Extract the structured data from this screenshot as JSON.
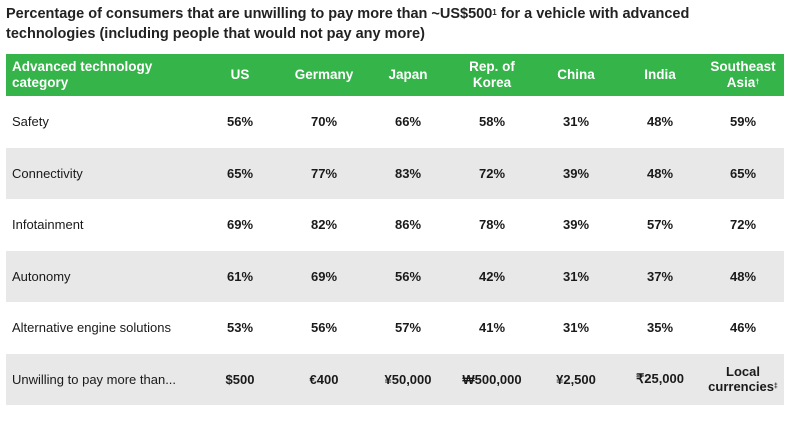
{
  "title": {
    "text_before": "Percentage of consumers that are unwilling to pay more than ~US$500",
    "marker": "1",
    "text_after": " for a vehicle with advanced technologies (including people that would not pay any more)"
  },
  "table": {
    "header": {
      "category": "Advanced technology category",
      "countries": [
        "US",
        "Germany",
        "Japan",
        "Rep. of Korea",
        "China",
        "India",
        "Southeast Asia"
      ],
      "sea_marker": "†"
    },
    "rows": [
      {
        "label": "Safety",
        "values": [
          "56%",
          "70%",
          "66%",
          "58%",
          "31%",
          "48%",
          "59%"
        ]
      },
      {
        "label": "Connectivity",
        "values": [
          "65%",
          "77%",
          "83%",
          "72%",
          "39%",
          "48%",
          "65%"
        ]
      },
      {
        "label": "Infotainment",
        "values": [
          "69%",
          "82%",
          "86%",
          "78%",
          "39%",
          "57%",
          "72%"
        ]
      },
      {
        "label": "Autonomy",
        "values": [
          "61%",
          "69%",
          "56%",
          "42%",
          "31%",
          "37%",
          "48%"
        ]
      },
      {
        "label": "Alternative engine solutions",
        "values": [
          "53%",
          "56%",
          "57%",
          "41%",
          "31%",
          "35%",
          "46%"
        ]
      },
      {
        "label": "Unwilling to pay more than...",
        "values": [
          "$500",
          "€400",
          "¥50,000",
          "₩500,000",
          "¥2,500",
          "₹25,000",
          "Local currencies"
        ],
        "last_marker": "‡"
      }
    ]
  },
  "colors": {
    "header_bg": "#34b449",
    "header_text": "#ffffff",
    "alt_row_bg": "#e8e8e8"
  }
}
